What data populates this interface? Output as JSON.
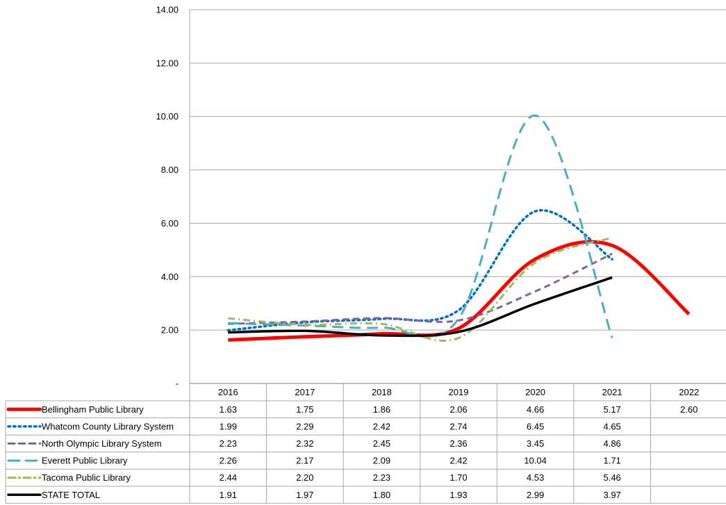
{
  "chart_data": {
    "type": "line",
    "x": [
      "2016",
      "2017",
      "2018",
      "2019",
      "2020",
      "2021",
      "2022"
    ],
    "ylim": [
      0,
      14
    ],
    "y_ticks": [
      "-",
      "2.00",
      "4.00",
      "6.00",
      "8.00",
      "10.00",
      "12.00",
      "14.00"
    ],
    "grid": true,
    "legend": "data-table-below",
    "series": [
      {
        "name": "Bellingham Public Library",
        "values": [
          1.63,
          1.75,
          1.86,
          2.06,
          4.66,
          5.17,
          2.6
        ],
        "labels": [
          "1.63",
          "1.75",
          "1.86",
          "2.06",
          "4.66",
          "5.17",
          "2.60"
        ],
        "color": "#ff0000",
        "style": "solid-thick"
      },
      {
        "name": "Whatcom County Library System",
        "values": [
          1.99,
          2.29,
          2.42,
          2.74,
          6.45,
          4.65,
          null
        ],
        "labels": [
          "1.99",
          "2.29",
          "2.42",
          "2.74",
          "6.45",
          "4.65",
          ""
        ],
        "color": "#0070c0",
        "style": "dotted"
      },
      {
        "name": "North Olympic Library System",
        "values": [
          2.23,
          2.32,
          2.45,
          2.36,
          3.45,
          4.86,
          null
        ],
        "labels": [
          "2.23",
          "2.32",
          "2.45",
          "2.36",
          "3.45",
          "4.86",
          ""
        ],
        "color": "#8064a2",
        "style": "dashed"
      },
      {
        "name": "Everett Public Library",
        "values": [
          2.26,
          2.17,
          2.09,
          2.42,
          10.04,
          1.71,
          null
        ],
        "labels": [
          "2.26",
          "2.17",
          "2.09",
          "2.42",
          "10.04",
          "1.71",
          ""
        ],
        "color": "#4bacc6",
        "style": "long-dash"
      },
      {
        "name": "Tacoma Public Library",
        "values": [
          2.44,
          2.2,
          2.23,
          1.7,
          4.53,
          5.46,
          null
        ],
        "labels": [
          "2.44",
          "2.20",
          "2.23",
          "1.70",
          "4.53",
          "5.46",
          ""
        ],
        "color": "#9bbb59",
        "style": "dash-dot"
      },
      {
        "name": "STATE TOTAL",
        "values": [
          1.91,
          1.97,
          1.8,
          1.93,
          2.99,
          3.97,
          null
        ],
        "labels": [
          "1.91",
          "1.97",
          "1.80",
          "1.93",
          "2.99",
          "3.97",
          ""
        ],
        "color": "#000000",
        "style": "solid"
      }
    ]
  }
}
